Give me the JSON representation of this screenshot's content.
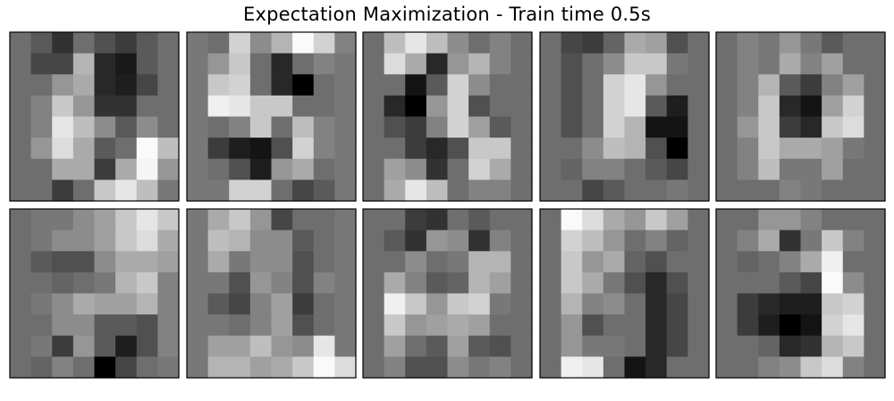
{
  "title": "Expectation Maximization - Train time 0.5s",
  "chart_data": {
    "type": "heatmap",
    "title": "Expectation Maximization - Train time 0.5s",
    "layout": "2 rows x 5 columns of 8x8 grayscale component images",
    "colormap": "gray (0 = black, 255 = white)",
    "axes": "off",
    "images": [
      [
        [
          110,
          90,
          50,
          110,
          80,
          60,
          90,
          110
        ],
        [
          110,
          70,
          70,
          180,
          40,
          25,
          90,
          110
        ],
        [
          110,
          110,
          150,
          170,
          40,
          30,
          70,
          110
        ],
        [
          110,
          130,
          200,
          150,
          50,
          50,
          110,
          110
        ],
        [
          110,
          130,
          230,
          190,
          140,
          90,
          140,
          110
        ],
        [
          110,
          150,
          220,
          170,
          90,
          110,
          250,
          190
        ],
        [
          110,
          110,
          170,
          170,
          60,
          170,
          245,
          150
        ],
        [
          110,
          110,
          60,
          110,
          200,
          230,
          190,
          120
        ]
      ],
      [
        [
          120,
          110,
          210,
          140,
          180,
          250,
          210,
          130
        ],
        [
          120,
          150,
          200,
          110,
          40,
          110,
          130,
          120
        ],
        [
          120,
          200,
          210,
          110,
          40,
          0,
          110,
          120
        ],
        [
          120,
          240,
          230,
          200,
          200,
          110,
          110,
          120
        ],
        [
          120,
          110,
          130,
          200,
          110,
          190,
          130,
          120
        ],
        [
          120,
          60,
          30,
          20,
          80,
          210,
          130,
          120
        ],
        [
          120,
          110,
          80,
          30,
          150,
          170,
          110,
          120
        ],
        [
          120,
          120,
          210,
          210,
          110,
          70,
          90,
          120
        ]
      ],
      [
        [
          110,
          190,
          230,
          190,
          140,
          110,
          130,
          110
        ],
        [
          110,
          220,
          170,
          40,
          150,
          180,
          130,
          110
        ],
        [
          110,
          110,
          20,
          90,
          210,
          140,
          110,
          110
        ],
        [
          110,
          40,
          0,
          150,
          210,
          80,
          110,
          110
        ],
        [
          110,
          80,
          60,
          130,
          210,
          160,
          90,
          110
        ],
        [
          110,
          110,
          60,
          40,
          80,
          200,
          200,
          110
        ],
        [
          110,
          160,
          140,
          50,
          110,
          210,
          170,
          110
        ],
        [
          110,
          170,
          230,
          190,
          110,
          130,
          130,
          110
        ]
      ],
      [
        [
          110,
          70,
          60,
          100,
          170,
          160,
          80,
          110
        ],
        [
          110,
          80,
          110,
          140,
          200,
          200,
          120,
          110
        ],
        [
          110,
          80,
          110,
          210,
          230,
          150,
          110,
          110
        ],
        [
          110,
          80,
          110,
          210,
          230,
          90,
          30,
          110
        ],
        [
          110,
          80,
          110,
          210,
          180,
          20,
          20,
          110
        ],
        [
          110,
          110,
          140,
          190,
          180,
          80,
          0,
          110
        ],
        [
          110,
          100,
          130,
          130,
          110,
          90,
          70,
          110
        ],
        [
          110,
          110,
          70,
          90,
          110,
          110,
          120,
          110
        ]
      ],
      [
        [
          110,
          130,
          120,
          150,
          120,
          90,
          110,
          110
        ],
        [
          110,
          130,
          120,
          170,
          130,
          160,
          110,
          110
        ],
        [
          110,
          130,
          180,
          90,
          60,
          130,
          160,
          110
        ],
        [
          110,
          130,
          200,
          40,
          20,
          160,
          210,
          110
        ],
        [
          110,
          150,
          200,
          60,
          40,
          200,
          220,
          110
        ],
        [
          110,
          130,
          200,
          170,
          170,
          160,
          120,
          110
        ],
        [
          110,
          130,
          190,
          120,
          120,
          160,
          110,
          110
        ],
        [
          110,
          110,
          110,
          130,
          120,
          110,
          110,
          110
        ]
      ],
      [
        [
          110,
          120,
          120,
          140,
          160,
          200,
          230,
          200
        ],
        [
          110,
          120,
          140,
          140,
          160,
          200,
          220,
          170
        ],
        [
          110,
          90,
          80,
          80,
          140,
          170,
          170,
          160
        ],
        [
          110,
          110,
          100,
          110,
          120,
          180,
          200,
          130
        ],
        [
          110,
          120,
          140,
          170,
          160,
          160,
          180,
          130
        ],
        [
          110,
          110,
          140,
          140,
          90,
          90,
          80,
          130
        ],
        [
          110,
          120,
          60,
          150,
          90,
          30,
          80,
          130
        ],
        [
          110,
          100,
          130,
          110,
          0,
          70,
          110,
          120
        ]
      ],
      [
        [
          120,
          170,
          200,
          150,
          70,
          110,
          110,
          120
        ],
        [
          120,
          190,
          180,
          140,
          140,
          90,
          110,
          120
        ],
        [
          120,
          170,
          120,
          140,
          140,
          80,
          110,
          120
        ],
        [
          120,
          120,
          80,
          150,
          130,
          80,
          130,
          120
        ],
        [
          120,
          90,
          70,
          130,
          160,
          60,
          110,
          120
        ],
        [
          120,
          120,
          110,
          130,
          160,
          80,
          110,
          120
        ],
        [
          120,
          160,
          160,
          190,
          150,
          140,
          230,
          120
        ],
        [
          120,
          180,
          180,
          160,
          170,
          200,
          250,
          220
        ]
      ],
      [
        [
          110,
          110,
          60,
          50,
          110,
          90,
          110,
          110
        ],
        [
          110,
          90,
          50,
          150,
          140,
          50,
          130,
          110
        ],
        [
          110,
          110,
          140,
          110,
          120,
          180,
          180,
          110
        ],
        [
          110,
          170,
          130,
          90,
          100,
          180,
          160,
          110
        ],
        [
          110,
          240,
          200,
          150,
          200,
          210,
          120,
          110
        ],
        [
          110,
          200,
          150,
          160,
          170,
          160,
          110,
          110
        ],
        [
          110,
          160,
          110,
          90,
          160,
          90,
          80,
          110
        ],
        [
          110,
          130,
          80,
          80,
          140,
          120,
          130,
          110
        ]
      ],
      [
        [
          110,
          250,
          220,
          170,
          150,
          200,
          160,
          110
        ],
        [
          110,
          210,
          190,
          150,
          110,
          130,
          100,
          110
        ],
        [
          110,
          200,
          150,
          170,
          100,
          80,
          110,
          110
        ],
        [
          110,
          200,
          170,
          120,
          80,
          40,
          80,
          110
        ],
        [
          110,
          180,
          130,
          140,
          110,
          40,
          70,
          110
        ],
        [
          110,
          150,
          80,
          110,
          110,
          40,
          70,
          110
        ],
        [
          110,
          150,
          120,
          120,
          110,
          40,
          70,
          110
        ],
        [
          110,
          240,
          230,
          110,
          20,
          40,
          110,
          110
        ]
      ],
      [
        [
          110,
          110,
          150,
          150,
          130,
          110,
          110,
          110
        ],
        [
          110,
          130,
          170,
          50,
          120,
          200,
          130,
          110
        ],
        [
          110,
          100,
          110,
          130,
          170,
          240,
          110,
          110
        ],
        [
          110,
          110,
          110,
          90,
          70,
          250,
          140,
          110
        ],
        [
          110,
          60,
          40,
          30,
          30,
          200,
          210,
          110
        ],
        [
          110,
          60,
          30,
          0,
          20,
          210,
          230,
          110
        ],
        [
          110,
          110,
          100,
          40,
          50,
          180,
          200,
          110
        ],
        [
          110,
          110,
          130,
          140,
          200,
          220,
          130,
          110
        ]
      ]
    ]
  }
}
